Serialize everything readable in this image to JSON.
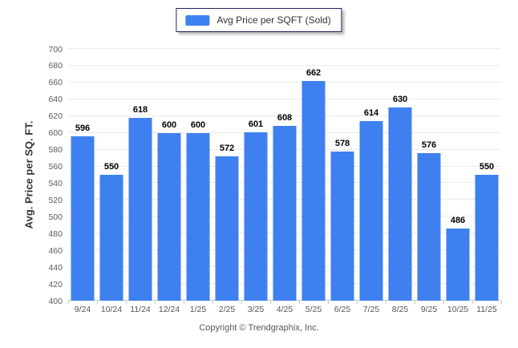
{
  "legend": {
    "label": "Avg Price per SQFT (Sold)"
  },
  "footer": {
    "copyright": "Copyright © Trendgraphix, Inc."
  },
  "colors": {
    "bar": "#3e80f0",
    "gridline": "#ebebeb",
    "axis_line": "#c9c9c9",
    "legend_border": "#23235f"
  },
  "chart_data": {
    "type": "bar",
    "title": "Avg Price per SQFT (Sold)",
    "categories": [
      "9/24",
      "10/24",
      "11/24",
      "12/24",
      "1/25",
      "2/25",
      "3/25",
      "4/25",
      "5/25",
      "6/25",
      "7/25",
      "8/25",
      "9/25",
      "10/25",
      "11/25"
    ],
    "values": [
      596,
      550,
      618,
      600,
      600,
      572,
      601,
      608,
      662,
      578,
      614,
      630,
      576,
      486,
      550
    ],
    "xlabel": "",
    "ylabel": "Avg. Price per SQ. FT.",
    "ylim": [
      400,
      700
    ],
    "ytick_step": 20,
    "grid": true,
    "legend_position": "top-center",
    "value_labels": true
  }
}
